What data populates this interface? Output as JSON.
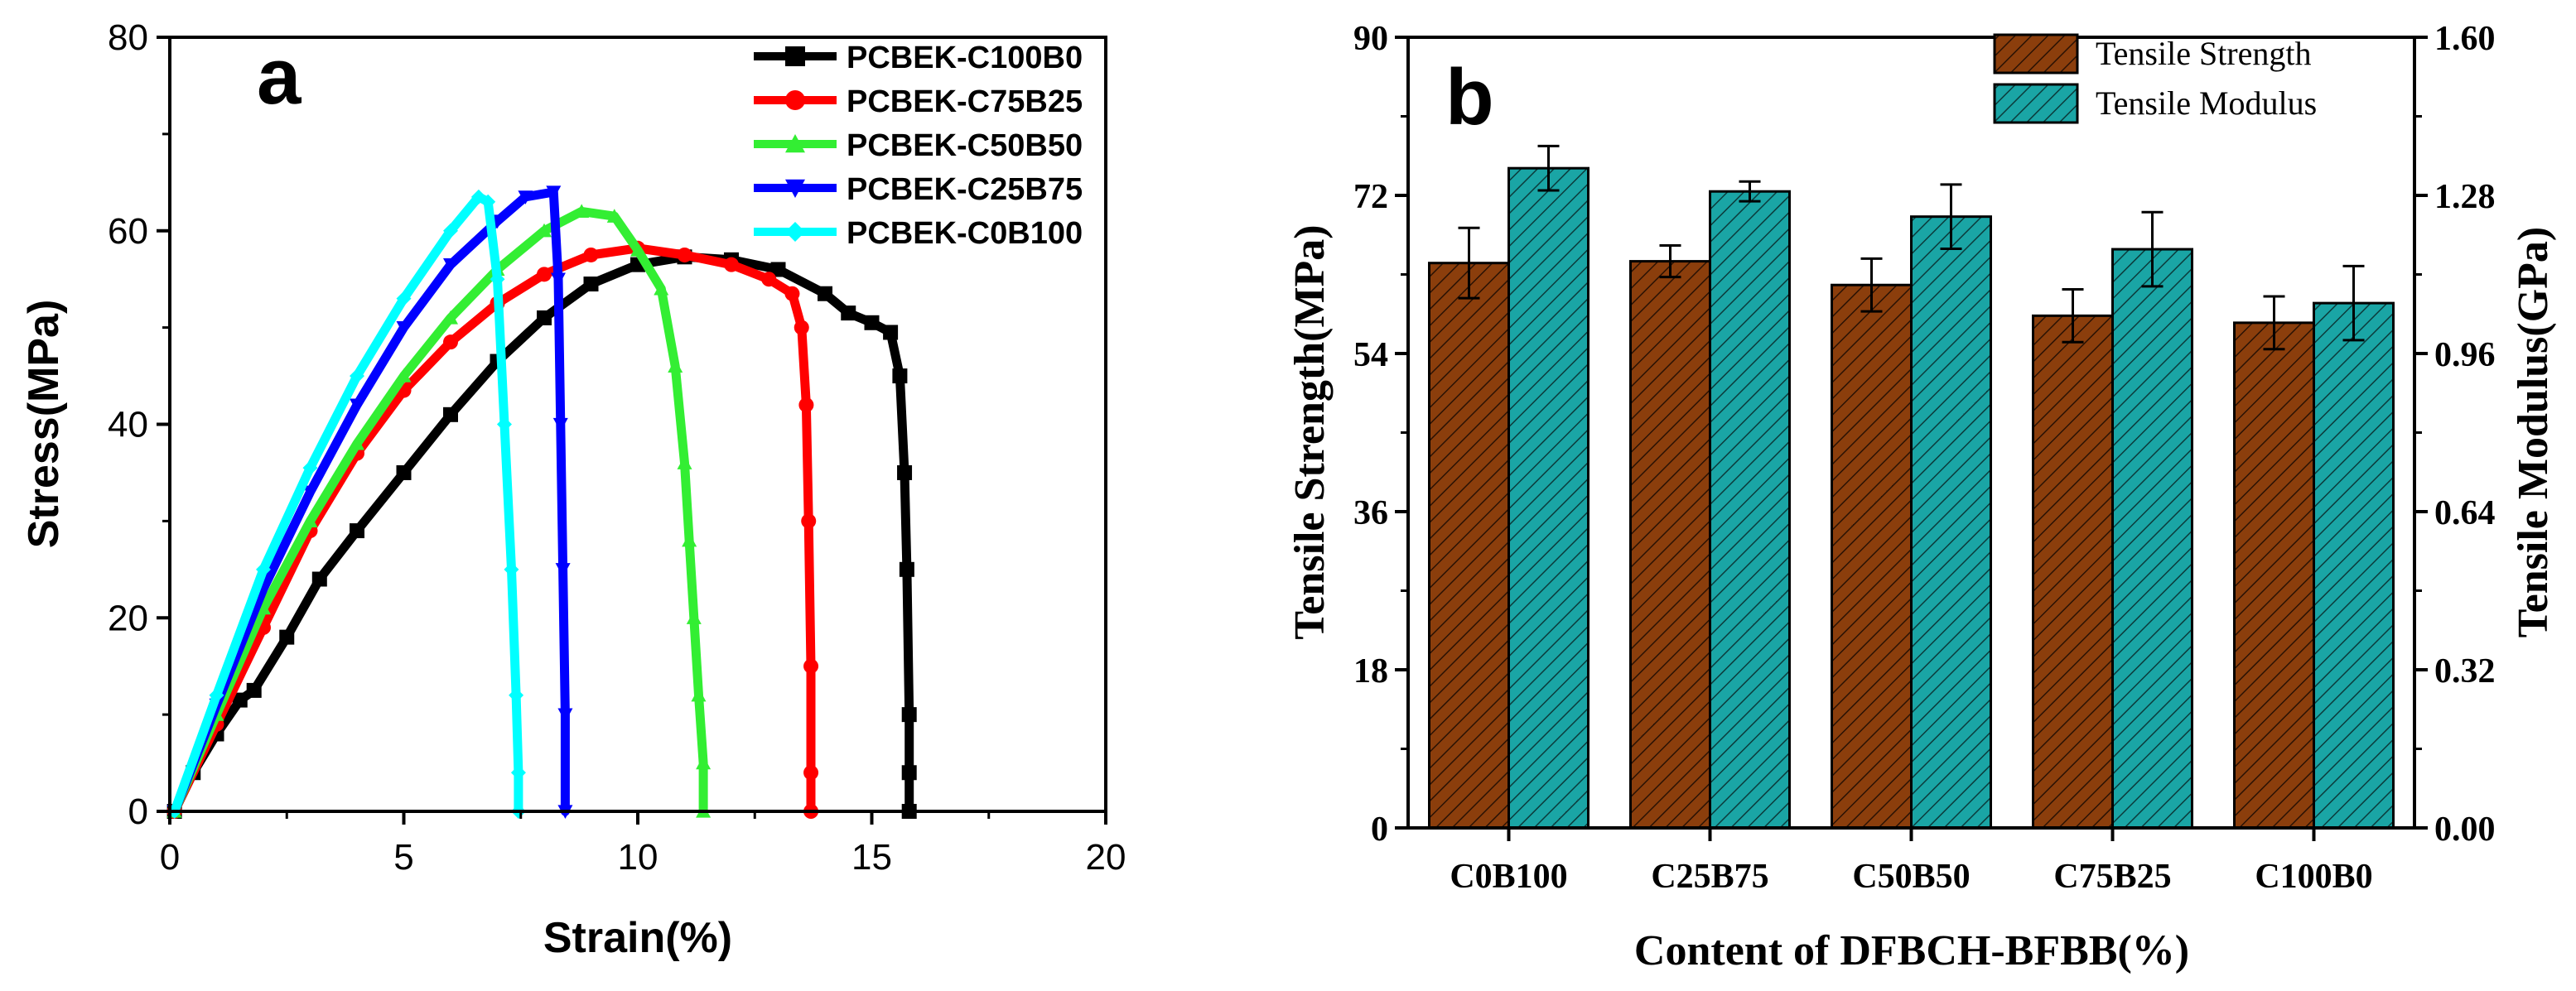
{
  "chart_data": [
    {
      "panel_label": "a",
      "type": "line",
      "title": "",
      "xlabel": "Strain(%)",
      "ylabel": "Stress(MPa)",
      "xlim": [
        0,
        20
      ],
      "ylim": [
        0,
        80
      ],
      "xticks": [
        0,
        5,
        10,
        15,
        20
      ],
      "yticks": [
        0,
        20,
        40,
        60,
        80
      ],
      "grid": false,
      "legend_position": "top-right",
      "series": [
        {
          "name": "PCBEK-C100B0",
          "color": "#000000",
          "marker": "square",
          "points": [
            [
              0.1,
              0
            ],
            [
              0.5,
              4
            ],
            [
              1.0,
              8
            ],
            [
              1.5,
              11.5
            ],
            [
              1.8,
              12.5
            ],
            [
              2.5,
              18
            ],
            [
              3.2,
              24
            ],
            [
              4.0,
              29
            ],
            [
              5.0,
              35
            ],
            [
              6.0,
              41
            ],
            [
              7.0,
              46.5
            ],
            [
              8.0,
              51
            ],
            [
              9.0,
              54.5
            ],
            [
              10.0,
              56.5
            ],
            [
              11.0,
              57.3
            ],
            [
              12.0,
              57
            ],
            [
              13.0,
              56
            ],
            [
              14.0,
              53.5
            ],
            [
              14.5,
              51.5
            ],
            [
              15.0,
              50.5
            ],
            [
              15.4,
              49.5
            ],
            [
              15.6,
              45
            ],
            [
              15.7,
              35
            ],
            [
              15.75,
              25
            ],
            [
              15.8,
              10
            ],
            [
              15.8,
              4
            ],
            [
              15.8,
              0
            ]
          ]
        },
        {
          "name": "PCBEK-C75B25",
          "color": "#ff0000",
          "marker": "circle",
          "points": [
            [
              0.1,
              0
            ],
            [
              1.0,
              9
            ],
            [
              2.0,
              19
            ],
            [
              3.0,
              29
            ],
            [
              4.0,
              37
            ],
            [
              5.0,
              43.5
            ],
            [
              6.0,
              48.5
            ],
            [
              7.0,
              52.5
            ],
            [
              8.0,
              55.5
            ],
            [
              9.0,
              57.5
            ],
            [
              10.0,
              58.2
            ],
            [
              11.0,
              57.5
            ],
            [
              12.0,
              56.5
            ],
            [
              12.8,
              55
            ],
            [
              13.3,
              53.5
            ],
            [
              13.5,
              50
            ],
            [
              13.6,
              42
            ],
            [
              13.65,
              30
            ],
            [
              13.7,
              15
            ],
            [
              13.7,
              4
            ],
            [
              13.7,
              0
            ]
          ]
        },
        {
          "name": "PCBEK-C50B50",
          "color": "#33ee33",
          "marker": "triangle-up",
          "points": [
            [
              0.1,
              0
            ],
            [
              1.0,
              10
            ],
            [
              2.0,
              21
            ],
            [
              3.0,
              30
            ],
            [
              4.0,
              38
            ],
            [
              5.0,
              45
            ],
            [
              6.0,
              51
            ],
            [
              7.0,
              56
            ],
            [
              8.0,
              60
            ],
            [
              8.8,
              62
            ],
            [
              9.5,
              61.5
            ],
            [
              10.0,
              58
            ],
            [
              10.5,
              54
            ],
            [
              10.8,
              46
            ],
            [
              11.0,
              36
            ],
            [
              11.1,
              28
            ],
            [
              11.2,
              20
            ],
            [
              11.3,
              12
            ],
            [
              11.4,
              5
            ],
            [
              11.4,
              0
            ]
          ]
        },
        {
          "name": "PCBEK-C25B75",
          "color": "#0000ff",
          "marker": "triangle-down",
          "points": [
            [
              0.1,
              0
            ],
            [
              1.0,
              11
            ],
            [
              2.0,
              23
            ],
            [
              3.0,
              33
            ],
            [
              4.0,
              42
            ],
            [
              5.0,
              50
            ],
            [
              6.0,
              56.5
            ],
            [
              7.0,
              61
            ],
            [
              7.6,
              63.5
            ],
            [
              8.2,
              64
            ],
            [
              8.3,
              55
            ],
            [
              8.35,
              40
            ],
            [
              8.4,
              25
            ],
            [
              8.45,
              10
            ],
            [
              8.45,
              0
            ]
          ]
        },
        {
          "name": "PCBEK-C0B100",
          "color": "#00ffff",
          "marker": "diamond",
          "points": [
            [
              0.1,
              0
            ],
            [
              1.0,
              12
            ],
            [
              2.0,
              25
            ],
            [
              3.0,
              35.5
            ],
            [
              4.0,
              45
            ],
            [
              5.0,
              53
            ],
            [
              6.0,
              60
            ],
            [
              6.6,
              63.5
            ],
            [
              6.8,
              63
            ],
            [
              7.0,
              55
            ],
            [
              7.15,
              40
            ],
            [
              7.3,
              25
            ],
            [
              7.4,
              12
            ],
            [
              7.45,
              4
            ],
            [
              7.45,
              0
            ]
          ]
        }
      ]
    },
    {
      "panel_label": "b",
      "type": "bar",
      "title": "",
      "xlabel": "Content of DFBCH-BFBB(%)",
      "ylabel": "Tensile Strength(MPa)",
      "y2label": "Tensile Modulus(GPa)",
      "ylim": [
        0,
        90
      ],
      "y2lim": [
        0,
        1.6
      ],
      "yticks": [
        "0",
        "18",
        "36",
        "54",
        "72",
        "90"
      ],
      "y2ticks": [
        "0.00",
        "0.32",
        "0.64",
        "0.96",
        "1.28",
        "1.60"
      ],
      "categories": [
        "C0B100",
        "C25B75",
        "C50B50",
        "C75B25",
        "C100B0"
      ],
      "grid": false,
      "legend_position": "top-right",
      "series": [
        {
          "name": "Tensile Strength",
          "axis": "left",
          "color": "#8b3e0c",
          "hatch": "diagonal",
          "values": [
            64.3,
            64.5,
            61.8,
            58.3,
            57.5
          ],
          "errors": [
            4.0,
            1.8,
            3.0,
            3.0,
            3.0
          ]
        },
        {
          "name": "Tensile Modulus",
          "axis": "right",
          "color": "#1aa5a5",
          "hatch": "diagonal",
          "values": [
            1.335,
            1.288,
            1.237,
            1.171,
            1.062
          ],
          "errors": [
            0.045,
            0.02,
            0.065,
            0.075,
            0.075
          ]
        }
      ]
    }
  ]
}
